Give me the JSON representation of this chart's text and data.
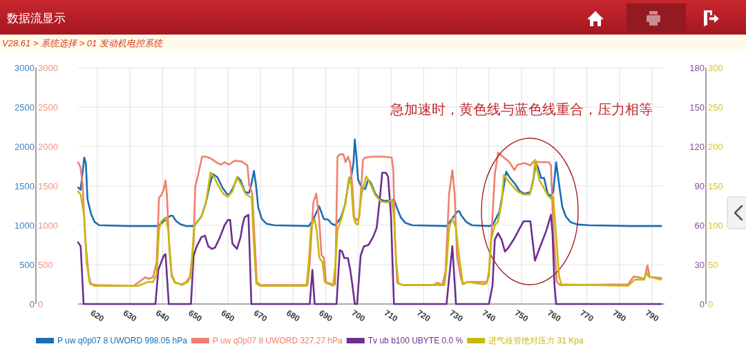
{
  "chart_data": [
    {
      "type": "line",
      "title": "数据流显示",
      "subtitle": "V28.61 > 系统选择 > 01 发动机电控系统",
      "annotations": [
        "急加速时，黄色线与蓝色线重合，压力相等"
      ],
      "xlim": [
        614.1,
        793.8
      ],
      "xticks": [
        620,
        630,
        640,
        650,
        660,
        670,
        680,
        690,
        700,
        710,
        720,
        730,
        740,
        750,
        760,
        770,
        780,
        790
      ],
      "ylim": [
        0,
        3000
      ],
      "yticks": [
        0,
        500,
        1000,
        1500,
        2000,
        2500,
        3000
      ],
      "y2lim": [
        0,
        3000
      ],
      "y2ticks": [
        0,
        500,
        1000,
        1500,
        2000,
        2500,
        3000
      ],
      "y3lim": [
        0,
        180
      ],
      "y3ticks": [
        0,
        30,
        60,
        90,
        120,
        150,
        180
      ],
      "grid": true,
      "legend": "bottom",
      "series": [
        {
          "name": "P uw q0p07 8 UWORD 998.05 hPa",
          "color": "#1c6cb4",
          "x": [
            614.1,
            614.9,
            616.0,
            616.5,
            617.0,
            618.1,
            619.2,
            620.6,
            629.7,
            638.2,
            639.6,
            641.0,
            642.4,
            643.1,
            644.2,
            645.6,
            647.3,
            649.5,
            650.2,
            651.9,
            653.3,
            654.5,
            655.4,
            656.8,
            658.3,
            659.7,
            660.4,
            661.4,
            663.0,
            663.9,
            665.3,
            666.5,
            667.2,
            668.0,
            668.6,
            669.3,
            670.4,
            671.8,
            674.2,
            684.8,
            685.9,
            686.9,
            688.0,
            688.7,
            689.4,
            690.8,
            691.8,
            692.9,
            694.7,
            695.9,
            697.1,
            697.8,
            698.5,
            698.9,
            699.4,
            699.9,
            701.0,
            702.1,
            703.0,
            703.8,
            705.2,
            706.6,
            708.0,
            710.2,
            710.9,
            711.9,
            713.0,
            714.4,
            716.5,
            727.1,
            728.1,
            729.2,
            730.2,
            730.9,
            731.6,
            733.1,
            734.8,
            740.0,
            741.1,
            742.1,
            743.2,
            744.2,
            745.3,
            746.3,
            748.1,
            749.5,
            750.9,
            752.7,
            753.6,
            754.4,
            755.1,
            756.0,
            756.9,
            758.0,
            759.0,
            759.7,
            760.6,
            761.5,
            762.5,
            763.6,
            765.0,
            767.1,
            770.7,
            783.3,
            792.8
          ],
          "values": [
            1480,
            1450,
            1860,
            1780,
            1330,
            1140,
            1040,
            1000,
            990,
            990,
            1020,
            1080,
            1120,
            1120,
            1050,
            1010,
            990,
            990,
            1020,
            1110,
            1290,
            1520,
            1650,
            1610,
            1480,
            1400,
            1390,
            1460,
            1610,
            1570,
            1420,
            1410,
            1520,
            1690,
            1520,
            1230,
            1080,
            1020,
            1000,
            990,
            1050,
            1140,
            1240,
            1160,
            1080,
            1070,
            1020,
            1000,
            1100,
            1260,
            1570,
            1610,
            1790,
            2090,
            1870,
            1580,
            1480,
            1460,
            1580,
            1540,
            1400,
            1330,
            1310,
            1310,
            1330,
            1210,
            1100,
            1030,
            1000,
            990,
            1050,
            1110,
            1170,
            1180,
            1120,
            1040,
            1000,
            990,
            1000,
            1080,
            1170,
            1400,
            1680,
            1610,
            1520,
            1430,
            1400,
            1420,
            1580,
            1790,
            1730,
            1600,
            1600,
            1400,
            1370,
            1420,
            1800,
            1520,
            1230,
            1110,
            1040,
            1010,
            1000,
            990,
            990
          ]
        },
        {
          "name": "P uw q0p07 8 UWORD 327.27 hPa",
          "color": "#f0806c",
          "axis": "y2",
          "x": [
            614.1,
            614.8,
            615.5,
            616.3,
            617.4,
            618.1,
            619.9,
            631.1,
            632.5,
            634.7,
            635.7,
            637.1,
            638.2,
            638.9,
            639.6,
            640.3,
            640.9,
            641.3,
            642.1,
            642.8,
            643.8,
            645.9,
            647.3,
            648.4,
            649.5,
            650.0,
            650.9,
            652.1,
            653.3,
            654.7,
            656.8,
            657.9,
            659.0,
            660.4,
            662.1,
            664.2,
            666.0,
            666.5,
            667.5,
            668.2,
            668.9,
            670.0,
            684.4,
            685.1,
            686.2,
            687.1,
            688.0,
            688.7,
            689.4,
            690.1,
            691.8,
            692.9,
            693.6,
            694.3,
            695.4,
            696.1,
            696.8,
            697.5,
            698.2,
            698.7,
            699.5,
            700.3,
            701.4,
            702.1,
            704.5,
            708.0,
            710.2,
            710.7,
            711.2,
            711.9,
            713.7,
            722.8,
            724.3,
            725.7,
            726.7,
            727.8,
            728.8,
            729.5,
            730.2,
            731.3,
            732.0,
            733.4,
            736.2,
            739.3,
            740.0,
            740.7,
            741.8,
            742.8,
            744.6,
            746.3,
            747.8,
            748.8,
            750.9,
            752.7,
            753.7,
            755.9,
            758.3,
            759.0,
            759.7,
            760.8,
            761.8,
            782.6,
            784.4,
            785.8,
            787.6,
            788.6,
            789.3,
            790.4,
            792.8
          ],
          "values": [
            1800,
            1740,
            1520,
            820,
            350,
            250,
            240,
            230,
            270,
            340,
            320,
            340,
            530,
            1350,
            1380,
            1450,
            1570,
            1400,
            680,
            350,
            270,
            250,
            280,
            350,
            760,
            1490,
            1640,
            1870,
            1870,
            1850,
            1790,
            1770,
            1800,
            1770,
            1820,
            1810,
            1760,
            1520,
            1400,
            820,
            280,
            240,
            240,
            530,
            1290,
            1400,
            1060,
            620,
            590,
            270,
            240,
            250,
            1870,
            1900,
            1900,
            1800,
            1870,
            1790,
            1470,
            1110,
            1060,
            1110,
            1830,
            1860,
            1870,
            1870,
            1860,
            1700,
            820,
            270,
            240,
            240,
            270,
            240,
            410,
            1400,
            1700,
            1400,
            620,
            350,
            250,
            280,
            280,
            280,
            350,
            820,
            1640,
            1920,
            1860,
            1800,
            1700,
            1770,
            1790,
            1760,
            1810,
            1800,
            1800,
            1760,
            970,
            280,
            240,
            250,
            350,
            340,
            320,
            490,
            340,
            340,
            330
          ]
        },
        {
          "name": "Tv ub b100 UBYTE 0.0 %",
          "color": "#6c2e90",
          "axis": "y3",
          "x": [
            614.1,
            614.9,
            615.8,
            637.8,
            638.7,
            639.6,
            640.4,
            640.9,
            641.9,
            648.7,
            649.5,
            650.5,
            651.9,
            653.0,
            654.0,
            655.1,
            656.1,
            657.6,
            659.0,
            660.0,
            660.7,
            661.4,
            662.8,
            663.9,
            664.5,
            665.1,
            666.3,
            666.8,
            667.2,
            685.1,
            685.9,
            686.6,
            693.3,
            694.3,
            695.0,
            695.7,
            696.8,
            697.5,
            698.2,
            698.9,
            699.6,
            700.7,
            701.7,
            703.1,
            704.5,
            705.6,
            706.6,
            707.3,
            708.4,
            709.1,
            710.0,
            710.7,
            710.9,
            727.0,
            728.8,
            729.9,
            740.0,
            741.1,
            741.8,
            742.8,
            743.9,
            744.9,
            746.0,
            747.8,
            749.5,
            750.6,
            752.7,
            754.1,
            755.9,
            757.6,
            759.0,
            759.5,
            760.1,
            760.6,
            792.8
          ],
          "values": [
            47,
            44,
            0,
            0,
            26,
            32,
            37,
            38,
            0,
            0,
            37,
            44,
            51,
            52,
            44,
            42,
            43,
            51,
            60,
            64,
            64,
            46,
            42,
            51,
            60,
            66,
            68,
            32,
            0,
            0,
            26,
            0,
            0,
            41,
            40,
            35,
            35,
            26,
            14,
            0,
            0,
            37,
            44,
            45,
            51,
            58,
            81,
            100,
            100,
            97,
            67,
            14,
            0,
            0,
            44,
            0,
            0,
            14,
            49,
            54,
            49,
            40,
            43,
            50,
            58,
            63,
            63,
            33,
            45,
            56,
            68,
            53,
            14,
            0,
            0
          ]
        }
      ]
    },
    {
      "type": "line",
      "xlim": [
        614.1,
        793.8
      ],
      "tick_labels": "y",
      "ylim": [
        0,
        300
      ],
      "yticks": [
        0,
        50,
        100,
        150,
        200,
        250,
        300
      ],
      "legend": "bottom",
      "series": [
        {
          "name": "进气歧管绝对压力 31 Kpa",
          "color": "#c8b90a",
          "x": [
            614.1,
            614.9,
            616.0,
            616.7,
            617.7,
            619.2,
            632.5,
            635.4,
            637.1,
            638.2,
            638.9,
            639.6,
            641.0,
            641.7,
            642.8,
            643.8,
            645.9,
            647.7,
            648.7,
            649.6,
            650.5,
            651.9,
            653.3,
            654.7,
            655.8,
            657.2,
            658.6,
            660.0,
            661.4,
            662.8,
            664.2,
            665.4,
            666.8,
            667.3,
            667.9,
            668.7,
            670.0,
            684.1,
            684.8,
            685.5,
            686.6,
            687.3,
            688.0,
            689.0,
            689.7,
            691.5,
            692.2,
            692.9,
            693.6,
            695.0,
            696.1,
            697.1,
            697.8,
            698.5,
            699.2,
            699.9,
            701.0,
            702.4,
            703.5,
            705.2,
            707.0,
            708.8,
            710.2,
            710.9,
            711.6,
            712.3,
            713.7,
            726.4,
            727.1,
            727.8,
            728.8,
            729.9,
            730.9,
            732.0,
            733.4,
            738.3,
            739.3,
            740.0,
            740.7,
            741.8,
            742.8,
            743.9,
            744.6,
            745.6,
            747.0,
            748.8,
            750.6,
            752.5,
            753.5,
            754.2,
            754.8,
            755.5,
            756.6,
            758.0,
            759.2,
            759.7,
            760.4,
            761.5,
            762.2,
            782.6,
            784.7,
            787.6,
            788.3,
            788.8,
            789.7,
            792.8
          ],
          "values": [
            143,
            139,
            111,
            53,
            26,
            23,
            23,
            28,
            28,
            38,
            94,
            105,
            110,
            94,
            38,
            28,
            24,
            28,
            35,
            97,
            104,
            111,
            129,
            167,
            161,
            149,
            140,
            136,
            143,
            161,
            151,
            140,
            136,
            135,
            82,
            26,
            23,
            23,
            53,
            98,
            108,
            91,
            59,
            53,
            28,
            26,
            23,
            47,
            94,
            111,
            129,
            161,
            152,
            111,
            102,
            101,
            140,
            162,
            154,
            138,
            130,
            129,
            132,
            111,
            53,
            26,
            24,
            24,
            53,
            97,
            108,
            97,
            59,
            26,
            28,
            25,
            26,
            41,
            82,
            100,
            105,
            129,
            164,
            158,
            151,
            143,
            139,
            139,
            154,
            183,
            170,
            157,
            149,
            138,
            133,
            136,
            97,
            35,
            25,
            23,
            31,
            31,
            41,
            35,
            34,
            31
          ]
        }
      ]
    }
  ]
}
